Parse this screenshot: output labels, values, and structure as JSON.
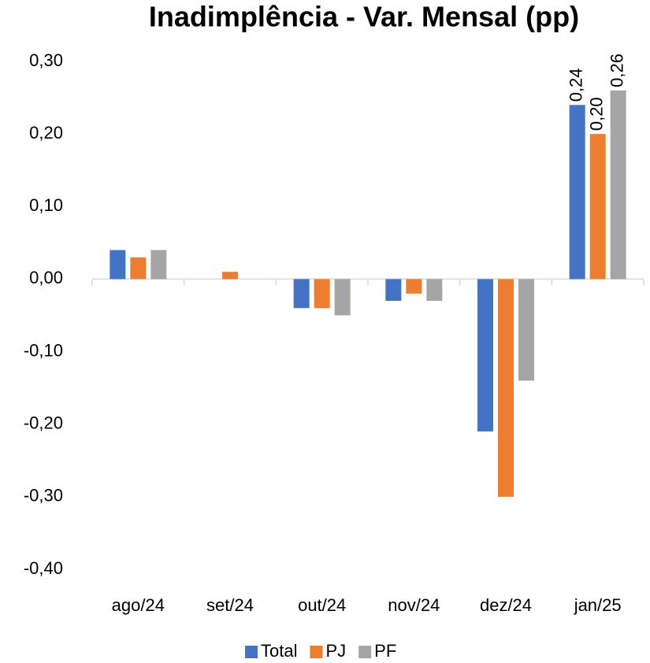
{
  "chart_data": {
    "type": "bar",
    "title": "Inadimplência - Var. Mensal (pp)",
    "categories": [
      "ago/24",
      "set/24",
      "out/24",
      "nov/24",
      "dez/24",
      "jan/25"
    ],
    "series": [
      {
        "name": "Total",
        "color": "#4472c4",
        "values": [
          0.04,
          0,
          -0.04,
          -0.03,
          -0.21,
          0.24
        ],
        "value_labels": [
          null,
          null,
          null,
          null,
          null,
          "0,24"
        ]
      },
      {
        "name": "PJ",
        "color": "#ed7d31",
        "values": [
          0.03,
          0.01,
          -0.04,
          -0.02,
          -0.3,
          0.2
        ],
        "value_labels": [
          null,
          null,
          null,
          null,
          null,
          "0,20"
        ]
      },
      {
        "name": "PF",
        "color": "#a5a5a5",
        "values": [
          0.04,
          0,
          -0.05,
          -0.03,
          -0.14,
          0.26
        ],
        "value_labels": [
          null,
          null,
          null,
          null,
          null,
          "0,26"
        ]
      }
    ],
    "ylim": [
      -0.4,
      0.3
    ],
    "yticks": [
      {
        "value": -0.4,
        "label": "-0,40"
      },
      {
        "value": -0.3,
        "label": "-0,30"
      },
      {
        "value": -0.2,
        "label": "-0,20"
      },
      {
        "value": -0.1,
        "label": "-0,10"
      },
      {
        "value": 0,
        "label": "0,00"
      },
      {
        "value": 0.1,
        "label": "0,10"
      },
      {
        "value": 0.2,
        "label": "0,20"
      },
      {
        "value": 0.3,
        "label": "0,30"
      }
    ],
    "grid": false,
    "legend": "bottom"
  }
}
